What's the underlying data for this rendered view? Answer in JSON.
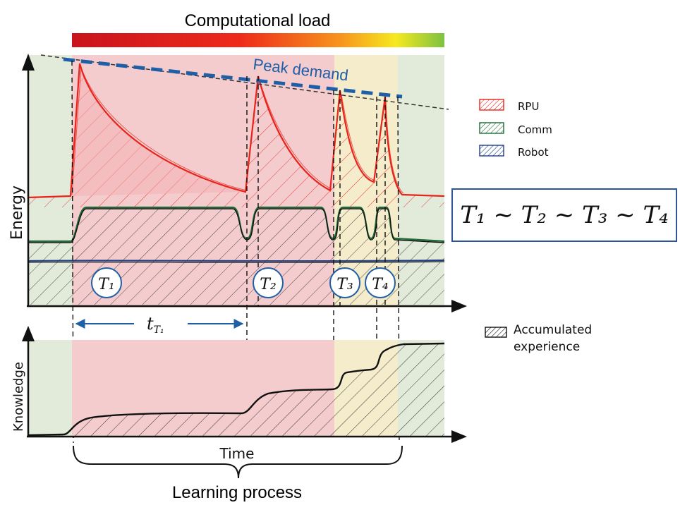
{
  "title": "Computational load",
  "peak_label": "Peak demand",
  "energy_axis_label": "Energy",
  "knowledge_axis_label": "Knowledge",
  "time_label": "Time",
  "process_label": "Learning process",
  "legend": [
    {
      "label": "RPU",
      "color": "#e8231b"
    },
    {
      "label": "Comm",
      "color": "#1d6b36"
    },
    {
      "label": "Robot",
      "color": "#1f3f88"
    }
  ],
  "knowledge_legend": "Accumulated experience",
  "equation": "T₁ ∼ T₂ ∼ T₃ ∼ T₄",
  "task_markers": [
    {
      "label": "T₁"
    },
    {
      "label": "T₂"
    },
    {
      "label": "T₃"
    },
    {
      "label": "T₄"
    }
  ],
  "duration_label": "t",
  "duration_subscript": "T₁",
  "colors": {
    "rpu": "#e8231b",
    "comm": "#1d6b36",
    "robot": "#1f3f88",
    "peak_line": "#1f5fa8",
    "pink_zone": "#f4c6c8",
    "yellow_zone": "#f3ebc4",
    "green_zone": "#dde8d4"
  }
}
